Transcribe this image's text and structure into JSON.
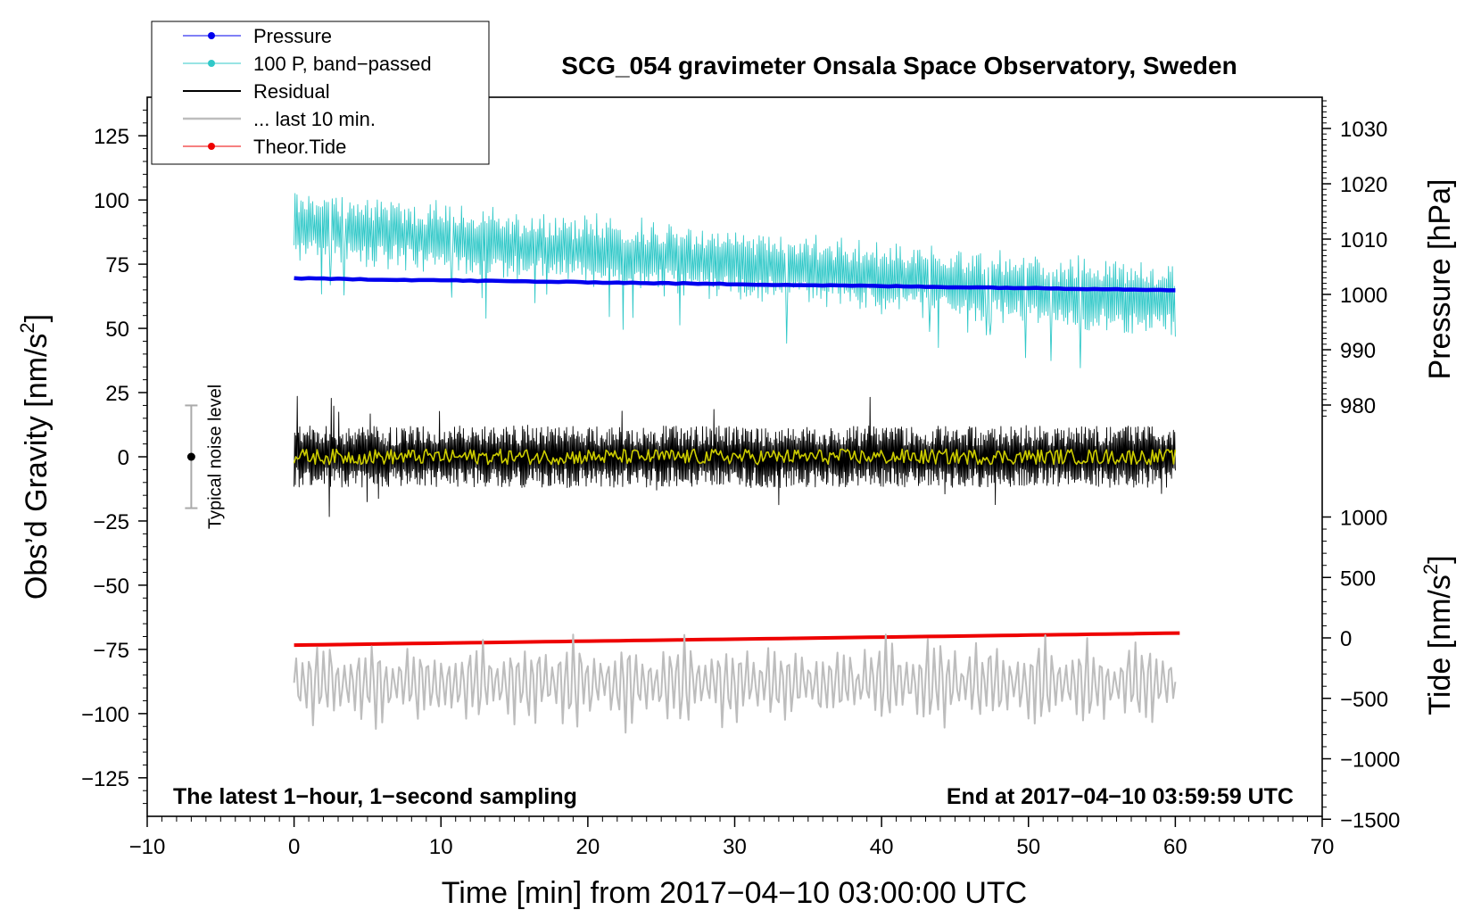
{
  "chart_data": {
    "type": "line",
    "title": "SCG_054 gravimeter Onsala Space Observatory, Sweden",
    "xlabel": "Time [min] from 2017−04−10 03:00:00 UTC",
    "xlim": [
      -10,
      70
    ],
    "x_ticks": [
      "−10",
      "0",
      "10",
      "20",
      "30",
      "40",
      "50",
      "60",
      "70"
    ],
    "x_tick_values": [
      -10,
      0,
      10,
      20,
      30,
      40,
      50,
      60,
      70
    ],
    "left_axis": {
      "label_main": "Obs’d Gravity [nm/s",
      "label_sup": "2",
      "label_end": "]",
      "ylim": [
        -140,
        140
      ],
      "ticks": [
        "125",
        "100",
        "75",
        "50",
        "25",
        "0",
        "−25",
        "−50",
        "−75",
        "−100",
        "−125"
      ],
      "tick_values": [
        125,
        100,
        75,
        50,
        25,
        0,
        -25,
        -50,
        -75,
        -100,
        -125
      ]
    },
    "pressure_axis": {
      "label": "Pressure [hPa]",
      "ticks": [
        "1030",
        "1020",
        "1010",
        "1000",
        "990",
        "980"
      ],
      "tick_values": [
        1030,
        1020,
        1010,
        1000,
        990,
        980
      ]
    },
    "tide_axis": {
      "label_main": "Tide [nm/s",
      "label_sup": "2",
      "label_end": "]",
      "ticks": [
        "1000",
        "500",
        "0",
        "−500",
        "−1000",
        "−1500"
      ],
      "tick_values": [
        1000,
        500,
        0,
        -500,
        -1000,
        -1500
      ]
    },
    "legend": {
      "position": "top-left",
      "entries": [
        {
          "label": "Pressure",
          "color": "#0000ee",
          "marker": true
        },
        {
          "label": "100 P, band−passed",
          "color": "#30c8c8",
          "marker": true
        },
        {
          "label": "Residual",
          "color": "#000000",
          "marker": false
        },
        {
          "label": "... last 10 min.",
          "color": "#bdbdbd",
          "marker": false
        },
        {
          "label": "Theor.Tide",
          "color": "#ee0000",
          "marker": true
        }
      ]
    },
    "noise_marker": {
      "label": "Typical noise level",
      "x": -7,
      "center": 0,
      "half_range": 20
    },
    "annotations": {
      "bottom_left": "The latest 1−hour, 1−second sampling",
      "bottom_right": "End at 2017−04−10 03:59:59 UTC"
    },
    "series": [
      {
        "name": "Pressure",
        "color": "#0000ee",
        "units": "hPa",
        "x_range": [
          0,
          60
        ],
        "start": 1002.9,
        "end": 1000.8
      },
      {
        "name": "100 P, band-passed",
        "color": "#30c8c8",
        "units": "nm/s2 (left axis)",
        "x_range": [
          0,
          60
        ],
        "start_mean": 90,
        "end_mean": 60,
        "amplitude": 12
      },
      {
        "name": "Residual",
        "color": "#000000",
        "units": "nm/s2",
        "x_range": [
          0,
          60
        ],
        "mean": 0,
        "amplitude": 10
      },
      {
        "name": "Residual (smoothed)",
        "color": "#cccc00",
        "units": "nm/s2",
        "x_range": [
          0,
          60
        ],
        "mean": 0,
        "amplitude": 3
      },
      {
        "name": "... last 10 min.",
        "color": "#bdbdbd",
        "units": "nm/s2 (left axis)",
        "x_range": [
          0,
          60
        ],
        "mean": -88,
        "amplitude": 12
      },
      {
        "name": "Theor.Tide",
        "color": "#ee0000",
        "units": "nm/s2",
        "x_range": [
          0,
          60.3
        ],
        "start": -60,
        "end": 40
      }
    ]
  }
}
